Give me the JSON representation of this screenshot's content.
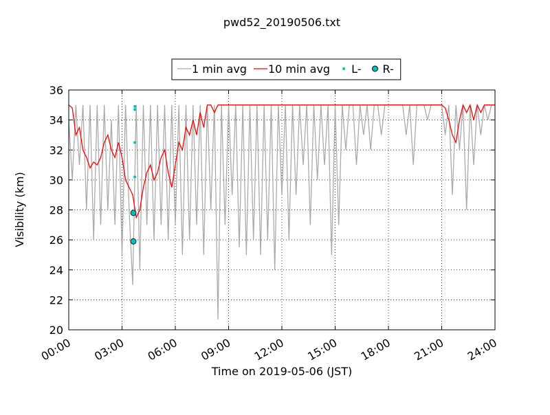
{
  "chart_data": {
    "type": "line",
    "title": "pwd52_20190506.txt",
    "xlabel": "Time on 2019-05-06 (JST)",
    "ylabel": "Visibility (km)",
    "xlim": [
      0,
      24
    ],
    "xticks": [
      {
        "value": 0,
        "label": "00:00"
      },
      {
        "value": 3,
        "label": "03:00"
      },
      {
        "value": 6,
        "label": "06:00"
      },
      {
        "value": 9,
        "label": "09:00"
      },
      {
        "value": 12,
        "label": "12:00"
      },
      {
        "value": 15,
        "label": "15:00"
      },
      {
        "value": 18,
        "label": "18:00"
      },
      {
        "value": 21,
        "label": "21:00"
      },
      {
        "value": 24,
        "label": "24:00"
      }
    ],
    "ylim": [
      20,
      36
    ],
    "yticks": [
      20,
      22,
      24,
      26,
      28,
      30,
      32,
      34,
      36
    ],
    "grid": true,
    "legend": "top",
    "x": [
      0,
      0.2,
      0.4,
      0.6,
      0.8,
      1,
      1.2,
      1.4,
      1.6,
      1.8,
      2,
      2.2,
      2.4,
      2.6,
      2.8,
      3,
      3.2,
      3.4,
      3.6,
      3.8,
      4,
      4.2,
      4.4,
      4.6,
      4.8,
      5,
      5.2,
      5.4,
      5.6,
      5.8,
      6,
      6.2,
      6.4,
      6.6,
      6.8,
      7,
      7.2,
      7.4,
      7.6,
      7.8,
      8,
      8.2,
      8.4,
      8.6,
      8.8,
      9,
      9.2,
      9.4,
      9.6,
      9.8,
      10,
      10.2,
      10.4,
      10.6,
      10.8,
      11,
      11.2,
      11.4,
      11.6,
      11.8,
      12,
      12.2,
      12.4,
      12.6,
      12.8,
      13,
      13.2,
      13.4,
      13.6,
      13.8,
      14,
      14.2,
      14.4,
      14.6,
      14.8,
      15,
      15.2,
      15.4,
      15.6,
      15.8,
      16,
      16.2,
      16.4,
      16.6,
      16.8,
      17,
      17.2,
      17.4,
      17.6,
      17.8,
      18,
      18.2,
      18.4,
      18.6,
      18.8,
      19,
      19.2,
      19.4,
      19.6,
      19.8,
      20,
      20.2,
      20.4,
      20.6,
      20.8,
      21,
      21.2,
      21.4,
      21.6,
      21.8,
      22,
      22.2,
      22.4,
      22.6,
      22.8,
      23,
      23.2,
      23.4,
      23.6,
      23.8,
      24
    ],
    "series": [
      {
        "name": "1 min avg",
        "color": "#aaaaaa",
        "marker": "line",
        "values": [
          34,
          30,
          35,
          31,
          35,
          28,
          35,
          26,
          35,
          27,
          35,
          28,
          34,
          27,
          35,
          25,
          35,
          28,
          23,
          35,
          24,
          35,
          27,
          35,
          26,
          35,
          27,
          35,
          26,
          35,
          27,
          35,
          25,
          35,
          26,
          35,
          27,
          35,
          25,
          35,
          28,
          35,
          20.7,
          35,
          27,
          35,
          29,
          35,
          25.5,
          35,
          25,
          35,
          26,
          35,
          25,
          35,
          26,
          35,
          24,
          35,
          29,
          35,
          26,
          35,
          29,
          35,
          31,
          35,
          27,
          35,
          30,
          35,
          31,
          35,
          25,
          35,
          27,
          35,
          32,
          35,
          35,
          31,
          35,
          33,
          35,
          32,
          35,
          35,
          33,
          35,
          35,
          35,
          35,
          35,
          35,
          33,
          35,
          31,
          35,
          35,
          35,
          34,
          35,
          35,
          35,
          35,
          33,
          35,
          29,
          35,
          32,
          35,
          28,
          35,
          31,
          35,
          33,
          35,
          34,
          35,
          null
        ]
      },
      {
        "name": "10 min avg",
        "color": "#ff0000",
        "marker": "line",
        "values": [
          35,
          34.8,
          33,
          33.5,
          32,
          31.5,
          30.8,
          31.2,
          31,
          31.5,
          32.5,
          33,
          32,
          31.5,
          32.5,
          31.5,
          30,
          29.5,
          29,
          27.5,
          28,
          29.5,
          30.5,
          31,
          30,
          30.5,
          31.5,
          32,
          30.5,
          29.5,
          31,
          32.5,
          32,
          33.5,
          33,
          34,
          33,
          34.5,
          33.5,
          35,
          35,
          34.5,
          35,
          35,
          35,
          35,
          35,
          35,
          35,
          35,
          35,
          35,
          35,
          35,
          35,
          35,
          35,
          35,
          35,
          35,
          35,
          35,
          35,
          35,
          35,
          35,
          35,
          35,
          35,
          35,
          35,
          35,
          35,
          35,
          35,
          35,
          35,
          35,
          35,
          35,
          35,
          35,
          35,
          35,
          35,
          35,
          35,
          35,
          35,
          35,
          35,
          35,
          35,
          35,
          35,
          35,
          35,
          35,
          35,
          35,
          35,
          35,
          35,
          35,
          35,
          35,
          34.8,
          34,
          33,
          32.5,
          34,
          35,
          34.5,
          35,
          34,
          35,
          34.5,
          35,
          35,
          35,
          35
        ]
      },
      {
        "name": "L-",
        "color": "#00c0c0",
        "marker": "dot",
        "x": [
          3.72,
          3.72,
          3.72,
          3.72
        ],
        "values": [
          34.9,
          34.7,
          32.5,
          30.2
        ]
      },
      {
        "name": "R-",
        "color": "#00c0c0",
        "marker": "circle",
        "x": [
          3.64,
          3.64
        ],
        "values": [
          27.8,
          25.9
        ]
      }
    ]
  }
}
